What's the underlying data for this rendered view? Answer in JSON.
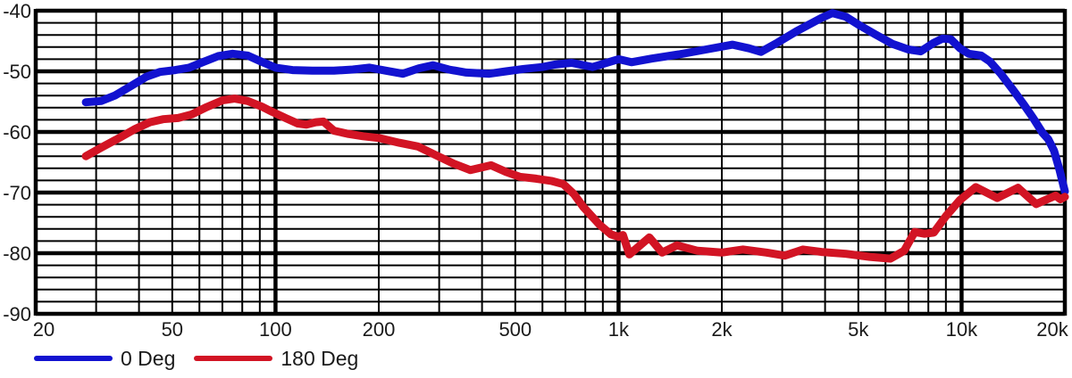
{
  "colors": {
    "background": "#ffffff",
    "grid": "#000000",
    "text": "#1a1a1a",
    "series_blue": "#1212d0",
    "series_red": "#d21424"
  },
  "chart_data": {
    "type": "line",
    "title": "",
    "xlabel": "",
    "ylabel": "",
    "grid": true,
    "legend_position": "bottom-left",
    "x_axis": {
      "scale": "log",
      "min": 20,
      "max": 20000,
      "unit": "Hz",
      "tick_labels": [
        {
          "value": 20,
          "label": "20"
        },
        {
          "value": 50,
          "label": "50"
        },
        {
          "value": 100,
          "label": "100"
        },
        {
          "value": 200,
          "label": "200"
        },
        {
          "value": 500,
          "label": "500"
        },
        {
          "value": 1000,
          "label": "1k"
        },
        {
          "value": 2000,
          "label": "2k"
        },
        {
          "value": 5000,
          "label": "5k"
        },
        {
          "value": 10000,
          "label": "10k"
        },
        {
          "value": 20000,
          "label": "20k"
        }
      ],
      "major_gridlines": [
        20,
        100,
        1000,
        10000,
        20000
      ],
      "minor_gridlines": [
        30,
        40,
        50,
        60,
        70,
        80,
        90,
        200,
        300,
        400,
        500,
        600,
        700,
        800,
        900,
        2000,
        3000,
        4000,
        5000,
        6000,
        7000,
        8000,
        9000
      ]
    },
    "y_axis": {
      "scale": "linear",
      "min": -90,
      "max": -40,
      "unit": "dB",
      "major_step": 10,
      "minor_step": 2,
      "tick_labels": [
        {
          "value": -40,
          "label": "-40"
        },
        {
          "value": -50,
          "label": "-50"
        },
        {
          "value": -60,
          "label": "-60"
        },
        {
          "value": -70,
          "label": "-70"
        },
        {
          "value": -80,
          "label": "-80"
        },
        {
          "value": -90,
          "label": "-90"
        }
      ]
    },
    "series": [
      {
        "name": "0 Deg",
        "color": "#1212d0",
        "points": [
          [
            28,
            -55.1
          ],
          [
            31,
            -54.9
          ],
          [
            34,
            -54.0
          ],
          [
            38,
            -52.4
          ],
          [
            42,
            -50.9
          ],
          [
            46,
            -50.1
          ],
          [
            51,
            -49.8
          ],
          [
            56,
            -49.4
          ],
          [
            62,
            -48.4
          ],
          [
            68,
            -47.5
          ],
          [
            75,
            -47.1
          ],
          [
            83,
            -47.4
          ],
          [
            90,
            -48.3
          ],
          [
            100,
            -49.4
          ],
          [
            112,
            -49.8
          ],
          [
            128,
            -49.9
          ],
          [
            148,
            -49.9
          ],
          [
            168,
            -49.7
          ],
          [
            188,
            -49.4
          ],
          [
            210,
            -49.9
          ],
          [
            235,
            -50.4
          ],
          [
            262,
            -49.5
          ],
          [
            288,
            -49.0
          ],
          [
            320,
            -49.7
          ],
          [
            360,
            -50.2
          ],
          [
            420,
            -50.4
          ],
          [
            470,
            -50.0
          ],
          [
            530,
            -49.6
          ],
          [
            600,
            -49.3
          ],
          [
            650,
            -48.9
          ],
          [
            730,
            -48.6
          ],
          [
            840,
            -49.3
          ],
          [
            1000,
            -48.0
          ],
          [
            1090,
            -48.5
          ],
          [
            1250,
            -47.9
          ],
          [
            1500,
            -47.2
          ],
          [
            1800,
            -46.4
          ],
          [
            2150,
            -45.6
          ],
          [
            2400,
            -46.2
          ],
          [
            2600,
            -46.8
          ],
          [
            2900,
            -45.3
          ],
          [
            3300,
            -43.4
          ],
          [
            3900,
            -41.2
          ],
          [
            4200,
            -40.4
          ],
          [
            4600,
            -41.0
          ],
          [
            5000,
            -42.3
          ],
          [
            5600,
            -43.9
          ],
          [
            6300,
            -45.5
          ],
          [
            7000,
            -46.4
          ],
          [
            7600,
            -46.7
          ],
          [
            8300,
            -45.3
          ],
          [
            8800,
            -44.6
          ],
          [
            9300,
            -44.7
          ],
          [
            9900,
            -46.2
          ],
          [
            10500,
            -47.1
          ],
          [
            11400,
            -47.4
          ],
          [
            12100,
            -48.4
          ],
          [
            13000,
            -50.4
          ],
          [
            14100,
            -53.0
          ],
          [
            15200,
            -55.5
          ],
          [
            16200,
            -57.8
          ],
          [
            17200,
            -60.1
          ],
          [
            17900,
            -61.2
          ],
          [
            18600,
            -63.1
          ],
          [
            19300,
            -66.3
          ],
          [
            20000,
            -69.8
          ]
        ]
      },
      {
        "name": "180 Deg",
        "color": "#d21424",
        "points": [
          [
            28,
            -64.0
          ],
          [
            31,
            -62.6
          ],
          [
            35,
            -61.0
          ],
          [
            39,
            -59.5
          ],
          [
            43,
            -58.4
          ],
          [
            47,
            -57.9
          ],
          [
            52,
            -57.7
          ],
          [
            57,
            -57.1
          ],
          [
            63,
            -55.9
          ],
          [
            70,
            -54.8
          ],
          [
            76,
            -54.5
          ],
          [
            83,
            -54.9
          ],
          [
            91,
            -55.8
          ],
          [
            98,
            -56.7
          ],
          [
            107,
            -57.7
          ],
          [
            116,
            -58.6
          ],
          [
            123,
            -58.8
          ],
          [
            131,
            -58.4
          ],
          [
            138,
            -58.3
          ],
          [
            148,
            -59.8
          ],
          [
            162,
            -60.3
          ],
          [
            180,
            -60.7
          ],
          [
            200,
            -61.0
          ],
          [
            230,
            -61.8
          ],
          [
            260,
            -62.4
          ],
          [
            295,
            -63.9
          ],
          [
            330,
            -65.2
          ],
          [
            370,
            -66.3
          ],
          [
            425,
            -65.5
          ],
          [
            470,
            -66.6
          ],
          [
            515,
            -67.4
          ],
          [
            575,
            -67.7
          ],
          [
            640,
            -68.1
          ],
          [
            690,
            -68.6
          ],
          [
            740,
            -70.2
          ],
          [
            790,
            -72.4
          ],
          [
            880,
            -75.3
          ],
          [
            950,
            -76.9
          ],
          [
            1000,
            -77.3
          ],
          [
            1030,
            -77.0
          ],
          [
            1075,
            -80.2
          ],
          [
            1230,
            -77.4
          ],
          [
            1340,
            -79.9
          ],
          [
            1480,
            -78.7
          ],
          [
            1700,
            -79.6
          ],
          [
            2000,
            -79.9
          ],
          [
            2300,
            -79.4
          ],
          [
            2700,
            -79.9
          ],
          [
            3050,
            -80.4
          ],
          [
            3450,
            -79.4
          ],
          [
            3900,
            -79.8
          ],
          [
            4600,
            -80.1
          ],
          [
            5400,
            -80.6
          ],
          [
            6200,
            -80.9
          ],
          [
            6800,
            -79.6
          ],
          [
            7300,
            -76.5
          ],
          [
            7800,
            -76.8
          ],
          [
            8300,
            -76.6
          ],
          [
            9000,
            -73.9
          ],
          [
            9900,
            -71.2
          ],
          [
            11000,
            -69.1
          ],
          [
            12700,
            -70.9
          ],
          [
            14600,
            -69.2
          ],
          [
            16500,
            -71.9
          ],
          [
            18800,
            -70.5
          ],
          [
            19400,
            -71.1
          ],
          [
            20000,
            -70.7
          ]
        ]
      }
    ]
  }
}
